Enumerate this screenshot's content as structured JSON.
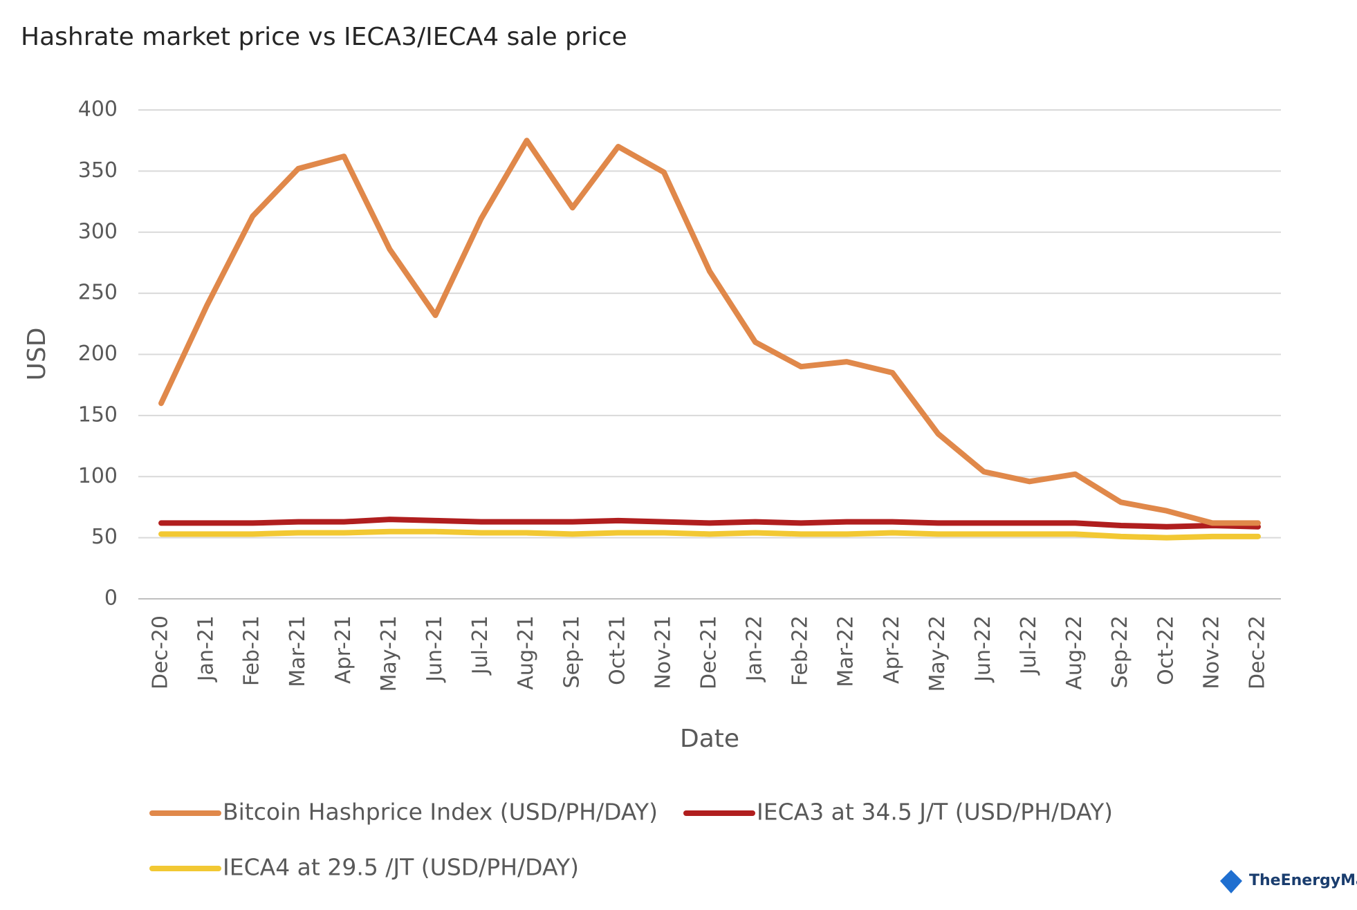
{
  "chart_data": {
    "type": "line",
    "title": "Hashrate market price vs IECA3/IECA4 sale price",
    "x_label": "Date",
    "y_label": "USD",
    "categories": [
      "Dec-20",
      "Jan-21",
      "Feb-21",
      "Mar-21",
      "Apr-21",
      "May-21",
      "Jun-21",
      "Jul-21",
      "Aug-21",
      "Sep-21",
      "Oct-21",
      "Nov-21",
      "Dec-21",
      "Jan-22",
      "Feb-22",
      "Mar-22",
      "Apr-22",
      "May-22",
      "Jun-22",
      "Jul-22",
      "Aug-22",
      "Sep-22",
      "Oct-22",
      "Nov-22",
      "Dec-22"
    ],
    "series": [
      {
        "name": "Bitcoin Hashprice Index (USD/PH/DAY)",
        "color": "#e0884a",
        "values": [
          160,
          240,
          313,
          352,
          362,
          286,
          232,
          311,
          375,
          320,
          370,
          349,
          268,
          210,
          190,
          194,
          185,
          135,
          104,
          96,
          102,
          79,
          72,
          62,
          62
        ]
      },
      {
        "name": "IECA3 at 34.5 J/T (USD/PH/DAY)",
        "color": "#b01e1e",
        "values": [
          62,
          62,
          62,
          63,
          63,
          65,
          64,
          63,
          63,
          63,
          64,
          63,
          62,
          63,
          62,
          63,
          63,
          62,
          62,
          62,
          62,
          60,
          59,
          60,
          59
        ]
      },
      {
        "name": "IECA4 at 29.5 /JT (USD/PH/DAY)",
        "color": "#f2c833",
        "values": [
          53,
          53,
          53,
          54,
          54,
          55,
          55,
          54,
          54,
          53,
          54,
          54,
          53,
          54,
          53,
          53,
          54,
          53,
          53,
          53,
          53,
          51,
          50,
          51,
          51
        ]
      }
    ],
    "ylim": [
      0,
      400
    ],
    "yticks": [
      0,
      50,
      100,
      150,
      200,
      250,
      300,
      350,
      400
    ],
    "grid": true,
    "legend": "bottom",
    "watermark": "TheEnergyMag"
  }
}
